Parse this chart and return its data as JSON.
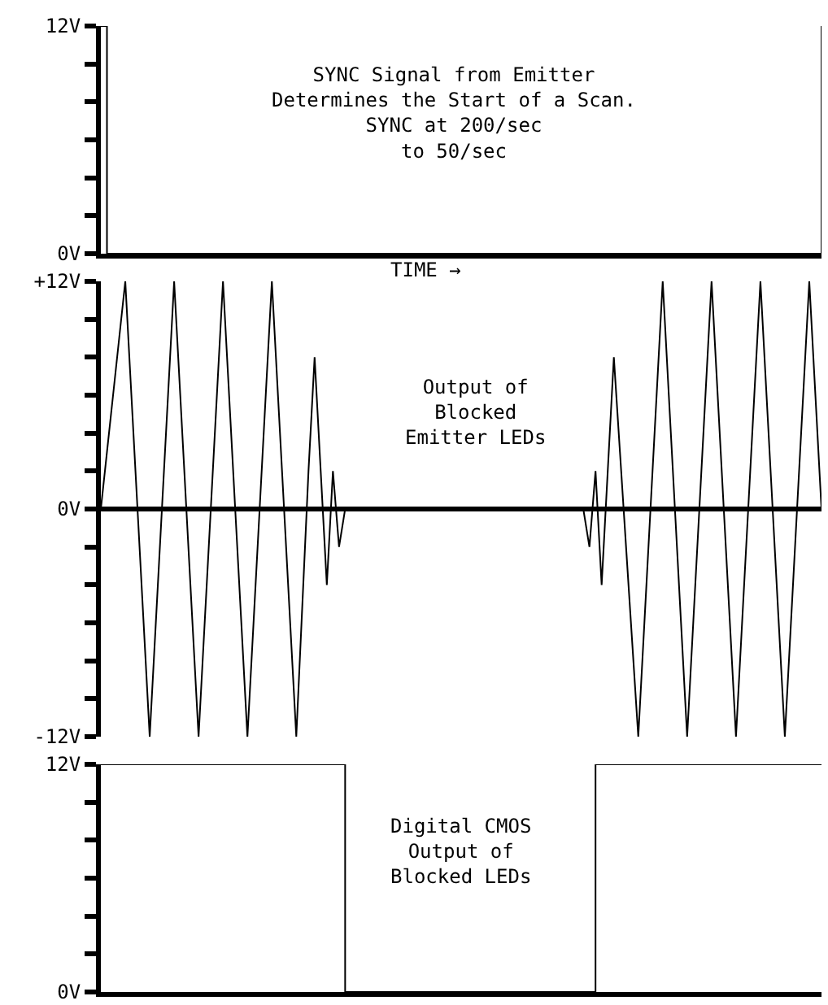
{
  "chart_data": [
    {
      "type": "step",
      "color": "#000000",
      "tick_labels": "y",
      "categories": [
        null,
        null,
        null,
        null,
        null,
        null,
        null,
        null,
        null,
        null,
        null,
        null,
        null,
        null,
        null,
        null,
        null,
        null,
        null,
        null,
        null,
        null,
        null,
        null,
        null,
        null,
        null,
        null,
        null,
        null,
        null,
        null,
        null,
        null,
        null,
        null,
        null,
        null,
        null,
        null,
        null,
        null,
        null,
        null,
        null,
        null,
        null,
        null,
        null,
        null,
        null,
        null,
        null,
        null,
        null,
        null,
        null,
        null,
        null,
        null,
        null,
        null,
        null,
        null,
        null,
        null,
        null,
        null,
        null,
        null,
        null,
        null,
        null,
        null,
        null,
        null,
        null,
        null,
        null,
        null,
        null,
        null,
        null,
        null,
        null,
        null,
        null,
        null,
        null,
        null,
        null,
        null,
        null,
        null,
        null,
        null,
        null,
        null,
        null,
        null,
        null,
        null,
        null,
        null,
        null,
        null,
        null,
        null,
        null,
        null,
        null,
        null,
        null,
        null,
        null,
        null,
        null,
        null,
        null
      ],
      "values": [
        12,
        0,
        0,
        0,
        0,
        0,
        0,
        0,
        0,
        0,
        0,
        0,
        0,
        0,
        0,
        0,
        0,
        0,
        0,
        0,
        0,
        0,
        0,
        0,
        0,
        0,
        0,
        0,
        0,
        0,
        0,
        0,
        0,
        0,
        0,
        0,
        0,
        0,
        0,
        0,
        0,
        0,
        0,
        0,
        0,
        0,
        0,
        0,
        0,
        0,
        0,
        0,
        0,
        0,
        0,
        0,
        0,
        0,
        0,
        0,
        0,
        0,
        0,
        0,
        0,
        0,
        0,
        0,
        0,
        0,
        0,
        0,
        0,
        0,
        0,
        0,
        0,
        0,
        0,
        0,
        0,
        0,
        0,
        0,
        0,
        0,
        0,
        0,
        0,
        0,
        0,
        0,
        0,
        0,
        0,
        0,
        0,
        0,
        0,
        0,
        0,
        0,
        0,
        0,
        0,
        0,
        0,
        0,
        0,
        0,
        0,
        0,
        0,
        0,
        0,
        0,
        0,
        0,
        12
      ],
      "ylim": [
        0,
        12
      ],
      "yticks": [
        {
          "value": 0,
          "label": "0V"
        },
        {
          "value": 2,
          "label": null
        },
        {
          "value": 4,
          "label": null
        },
        {
          "value": 6,
          "label": null
        },
        {
          "value": 8,
          "label": null
        },
        {
          "value": 10,
          "label": null
        },
        {
          "value": 12,
          "label": "12V"
        }
      ],
      "annotations": [
        "SYNC Signal from Emitter\nDetermines the Start of a Scan.\nSYNC at 200/sec\nto 50/sec",
        "TIME →"
      ]
    },
    {
      "type": "line",
      "color": "#000000",
      "tick_labels": "y",
      "categories": [
        null,
        null,
        null,
        null,
        null,
        null,
        null,
        null,
        null,
        null,
        null,
        null,
        null,
        null,
        null,
        null,
        null,
        null,
        null,
        null,
        null,
        null,
        null,
        null,
        null,
        null,
        null,
        null,
        null,
        null,
        null,
        null,
        null,
        null,
        null,
        null,
        null,
        null,
        null,
        null,
        null,
        null,
        null,
        null,
        null,
        null,
        null,
        null,
        null,
        null,
        null,
        null,
        null,
        null,
        null,
        null,
        null,
        null,
        null,
        null,
        null,
        null,
        null,
        null,
        null,
        null,
        null,
        null,
        null,
        null,
        null,
        null,
        null,
        null,
        null,
        null,
        null,
        null,
        null,
        null,
        null,
        null,
        null,
        null,
        null,
        null,
        null,
        null,
        null,
        null,
        null,
        null,
        null,
        null,
        null,
        null,
        null,
        null,
        null,
        null,
        null,
        null,
        null,
        null,
        null,
        null,
        null,
        null,
        null,
        null,
        null,
        null,
        null,
        null,
        null,
        null,
        null,
        null,
        null
      ],
      "values": [
        0,
        3,
        6,
        9,
        12,
        6,
        0,
        -6,
        -12,
        -6,
        0,
        6,
        12,
        6,
        0,
        -6,
        -12,
        -6,
        0,
        6,
        12,
        6,
        0,
        -6,
        -12,
        -6,
        0,
        6,
        12,
        6,
        0,
        -6,
        -12,
        -5,
        2,
        8,
        2,
        -4,
        2,
        -2,
        0,
        0,
        0,
        0,
        0,
        0,
        0,
        0,
        0,
        0,
        0,
        0,
        0,
        0,
        0,
        0,
        0,
        0,
        0,
        0,
        0,
        0,
        0,
        0,
        0,
        0,
        0,
        0,
        0,
        0,
        0,
        0,
        0,
        0,
        0,
        0,
        0,
        0,
        0,
        0,
        -2,
        2,
        -4,
        2,
        8,
        3,
        -2,
        -7,
        -12,
        -6,
        0,
        6,
        12,
        6,
        0,
        -6,
        -12,
        -6,
        0,
        6,
        12,
        6,
        0,
        -6,
        -12,
        -6,
        0,
        6,
        12,
        6,
        0,
        -6,
        -12,
        -6,
        0,
        6,
        12,
        6,
        0
      ],
      "ylim": [
        -12,
        12
      ],
      "yticks": [
        {
          "value": -12,
          "label": "-12V"
        },
        {
          "value": -10,
          "label": null
        },
        {
          "value": -8,
          "label": null
        },
        {
          "value": -6,
          "label": null
        },
        {
          "value": -4,
          "label": null
        },
        {
          "value": -2,
          "label": null
        },
        {
          "value": 0,
          "label": "0V"
        },
        {
          "value": 2,
          "label": null
        },
        {
          "value": 4,
          "label": null
        },
        {
          "value": 6,
          "label": null
        },
        {
          "value": 8,
          "label": null
        },
        {
          "value": 10,
          "label": null
        },
        {
          "value": 12,
          "label": "+12V"
        }
      ],
      "annotations": [
        "Output of\nBlocked\nEmitter LEDs"
      ]
    },
    {
      "type": "step",
      "color": "#000000",
      "tick_labels": "y",
      "categories": [
        null,
        null,
        null,
        null,
        null,
        null,
        null,
        null,
        null,
        null,
        null,
        null,
        null,
        null,
        null,
        null,
        null,
        null,
        null,
        null,
        null,
        null,
        null,
        null,
        null,
        null,
        null,
        null,
        null,
        null,
        null,
        null,
        null,
        null,
        null,
        null,
        null,
        null,
        null,
        null,
        null,
        null,
        null,
        null,
        null,
        null,
        null,
        null,
        null,
        null,
        null,
        null,
        null,
        null,
        null,
        null,
        null,
        null,
        null,
        null,
        null,
        null,
        null,
        null,
        null,
        null,
        null,
        null,
        null,
        null,
        null,
        null,
        null,
        null,
        null,
        null,
        null,
        null,
        null,
        null,
        null,
        null,
        null,
        null,
        null,
        null,
        null,
        null,
        null,
        null,
        null,
        null,
        null,
        null,
        null,
        null,
        null,
        null,
        null,
        null,
        null,
        null,
        null,
        null,
        null,
        null,
        null,
        null,
        null,
        null,
        null,
        null,
        null,
        null,
        null,
        null,
        null,
        null,
        null
      ],
      "values": [
        12,
        12,
        12,
        12,
        12,
        12,
        12,
        12,
        12,
        12,
        12,
        12,
        12,
        12,
        12,
        12,
        12,
        12,
        12,
        12,
        12,
        12,
        12,
        12,
        12,
        12,
        12,
        12,
        12,
        12,
        12,
        12,
        12,
        12,
        12,
        12,
        12,
        12,
        12,
        12,
        0,
        0,
        0,
        0,
        0,
        0,
        0,
        0,
        0,
        0,
        0,
        0,
        0,
        0,
        0,
        0,
        0,
        0,
        0,
        0,
        0,
        0,
        0,
        0,
        0,
        0,
        0,
        0,
        0,
        0,
        0,
        0,
        0,
        0,
        0,
        0,
        0,
        0,
        0,
        0,
        0,
        12,
        12,
        12,
        12,
        12,
        12,
        12,
        12,
        12,
        12,
        12,
        12,
        12,
        12,
        12,
        12,
        12,
        12,
        12,
        12,
        12,
        12,
        12,
        12,
        12,
        12,
        12,
        12,
        12,
        12,
        12,
        12,
        12,
        12,
        12,
        12,
        12,
        12
      ],
      "ylim": [
        0,
        12
      ],
      "yticks": [
        {
          "value": 0,
          "label": "0V"
        },
        {
          "value": 2,
          "label": null
        },
        {
          "value": 4,
          "label": null
        },
        {
          "value": 6,
          "label": null
        },
        {
          "value": 8,
          "label": null
        },
        {
          "value": 10,
          "label": null
        },
        {
          "value": 12,
          "label": "12V"
        }
      ],
      "annotations": [
        "Digital CMOS\nOutput of\nBlocked LEDs"
      ]
    }
  ]
}
